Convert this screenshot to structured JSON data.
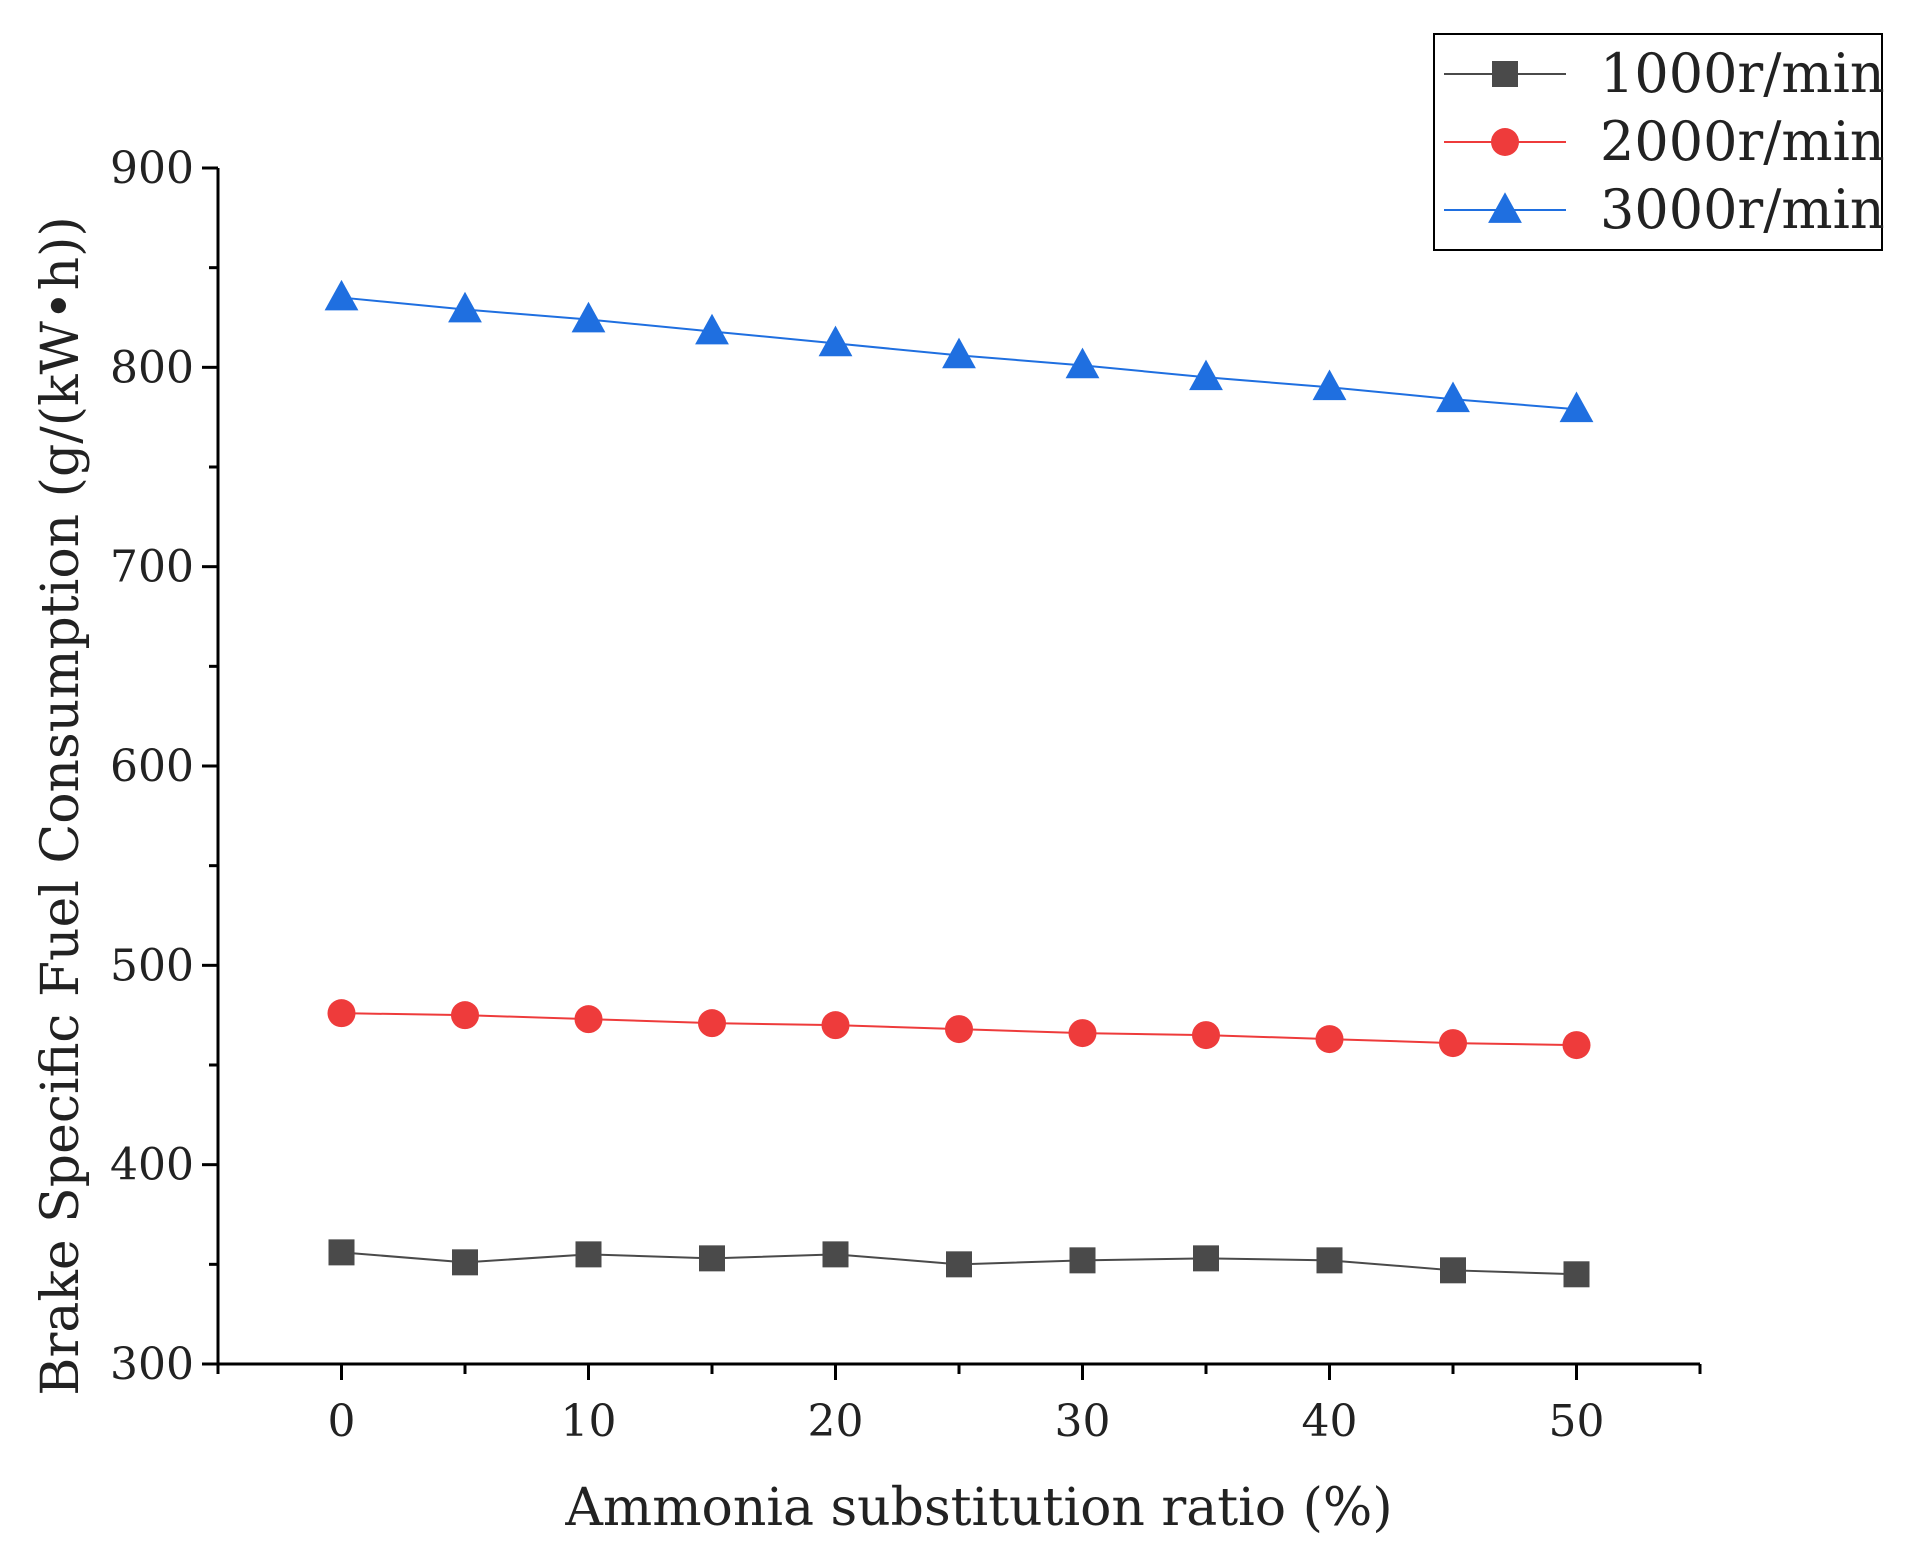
{
  "chart_data": {
    "type": "line",
    "title": "",
    "xlabel": "Ammonia substitution ratio (%)",
    "ylabel": "Brake Specific Fuel Consumption (g/(kW•h))",
    "xlim": [
      -5,
      55
    ],
    "ylim": [
      300,
      900
    ],
    "xticks": [
      0,
      10,
      20,
      30,
      40,
      50
    ],
    "yticks": [
      300,
      400,
      500,
      600,
      700,
      800,
      900
    ],
    "x": [
      0,
      5,
      10,
      15,
      20,
      25,
      30,
      35,
      40,
      45,
      50
    ],
    "legend_position": "top-right",
    "series": [
      {
        "name": "1000r/min",
        "marker": "square",
        "color": "#4a4a4a",
        "values": [
          356,
          351,
          355,
          353,
          355,
          350,
          352,
          353,
          352,
          347,
          345
        ]
      },
      {
        "name": "2000r/min",
        "marker": "circle",
        "color": "#ee3b3b",
        "values": [
          476,
          475,
          473,
          471,
          470,
          468,
          466,
          465,
          463,
          461,
          460
        ]
      },
      {
        "name": "3000r/min",
        "marker": "triangle",
        "color": "#1f6fe0",
        "values": [
          835,
          829,
          824,
          818,
          812,
          806,
          801,
          795,
          790,
          784,
          779
        ]
      }
    ]
  }
}
